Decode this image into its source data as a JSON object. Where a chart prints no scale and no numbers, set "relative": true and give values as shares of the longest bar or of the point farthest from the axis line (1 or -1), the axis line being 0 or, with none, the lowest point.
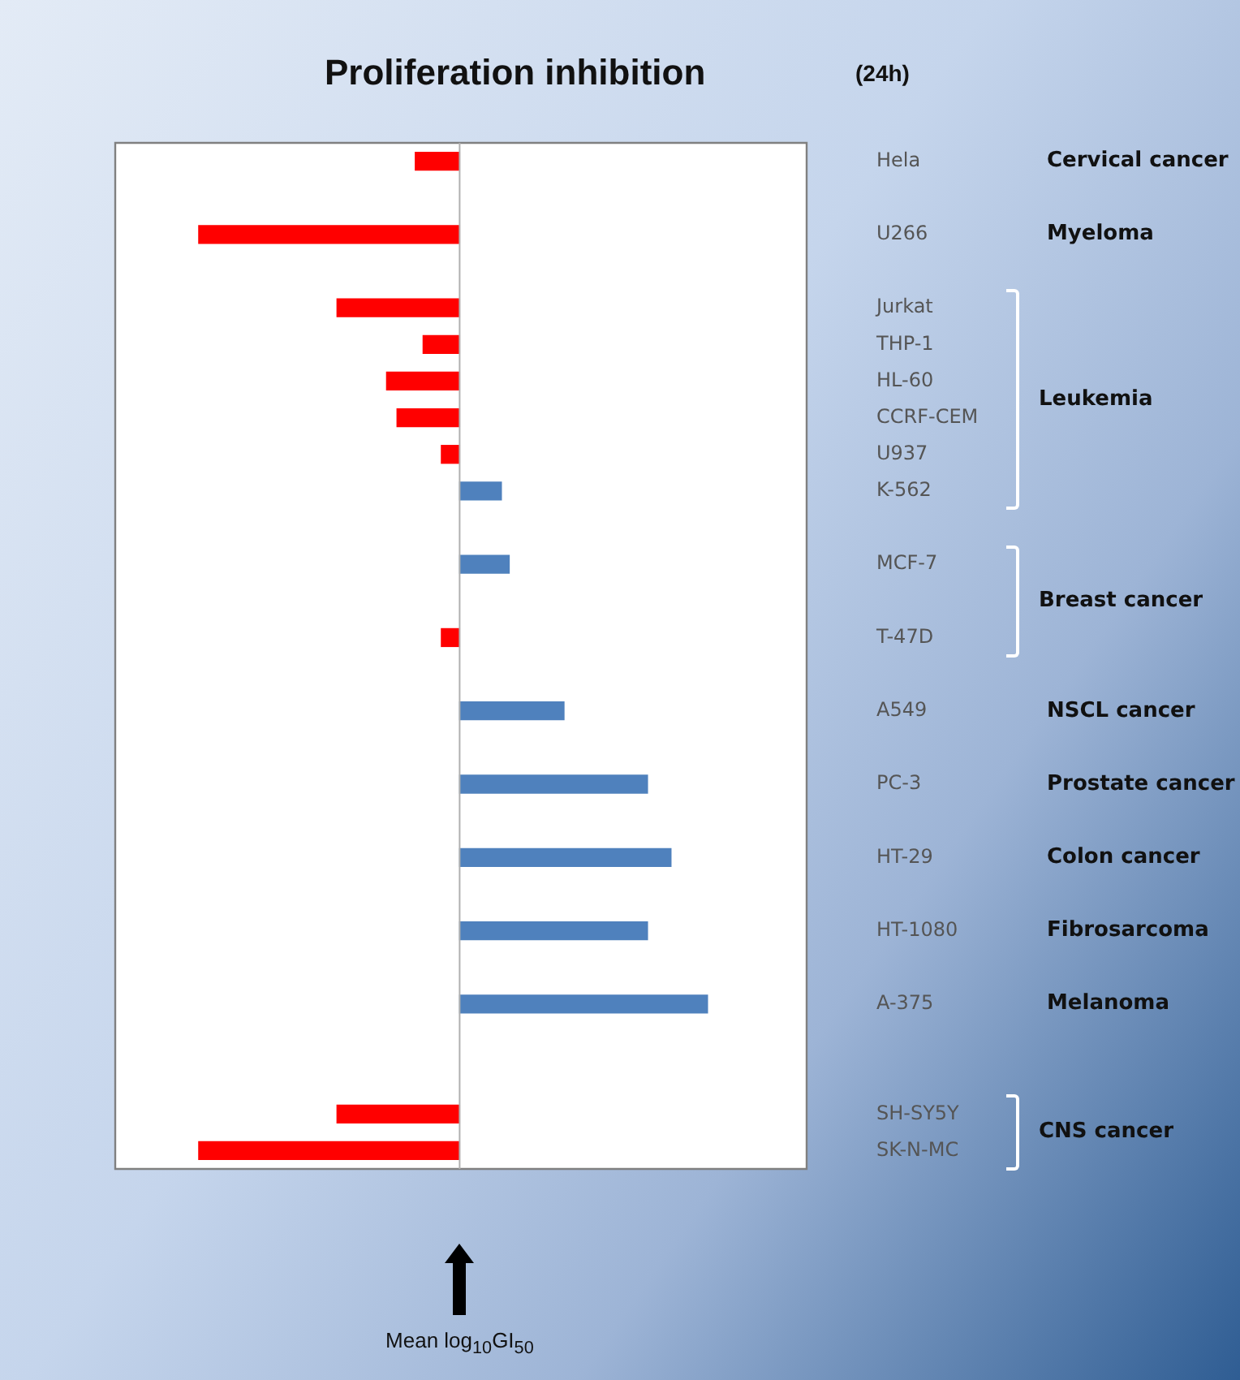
{
  "chart_data": {
    "type": "bar",
    "orientation": "horizontal",
    "relative": true,
    "title": "Proliferation inhibition",
    "subtitle": "(24h)",
    "categories": [
      "Hela",
      null,
      "U266",
      null,
      "Jurkat",
      "THP-1",
      "HL-60",
      "CCRF-CEM",
      "U937",
      "K-562",
      null,
      "MCF-7",
      null,
      "T-47D",
      null,
      "A549",
      null,
      "PC-3",
      null,
      "HT-29",
      null,
      "HT-1080",
      null,
      "A-375",
      null,
      null,
      "SH-SY5Y",
      "SK-N-MC"
    ],
    "values": [
      -0.17,
      null,
      -1,
      null,
      -0.47,
      -0.14,
      -0.28,
      -0.24,
      -0.07,
      0.16,
      null,
      0.19,
      null,
      -0.07,
      null,
      0.4,
      null,
      0.72,
      null,
      0.81,
      null,
      0.72,
      null,
      0.95,
      null,
      null,
      -0.47,
      -1
    ],
    "colors": [
      "#ff0000",
      "#ff0000",
      "#ff0000",
      "#ff0000",
      "#ff0000",
      "#ff0000",
      "#ff0000",
      "#ff0000",
      "#ff0000",
      "#4f81bd",
      "#4f81bd",
      "#4f81bd",
      "#ff0000",
      "#ff0000",
      "#4f81bd",
      "#4f81bd",
      "#4f81bd",
      "#4f81bd",
      "#4f81bd",
      "#4f81bd",
      "#4f81bd",
      "#4f81bd",
      "#4f81bd",
      "#4f81bd",
      "#ff0000",
      "#ff0000",
      "#ff0000",
      "#ff0000"
    ],
    "annotations": [
      "Cervical cancer",
      "Myeloma",
      "Leukemia",
      "Breast cancer",
      "NSCL cancer",
      "Prostate cancer",
      "Colon cancer",
      "Fibrosarcoma",
      "Melanoma",
      "CNS cancer",
      "Mean log$_{10}$GI$_{50}$"
    ],
    "grid": false,
    "legend": false
  }
}
